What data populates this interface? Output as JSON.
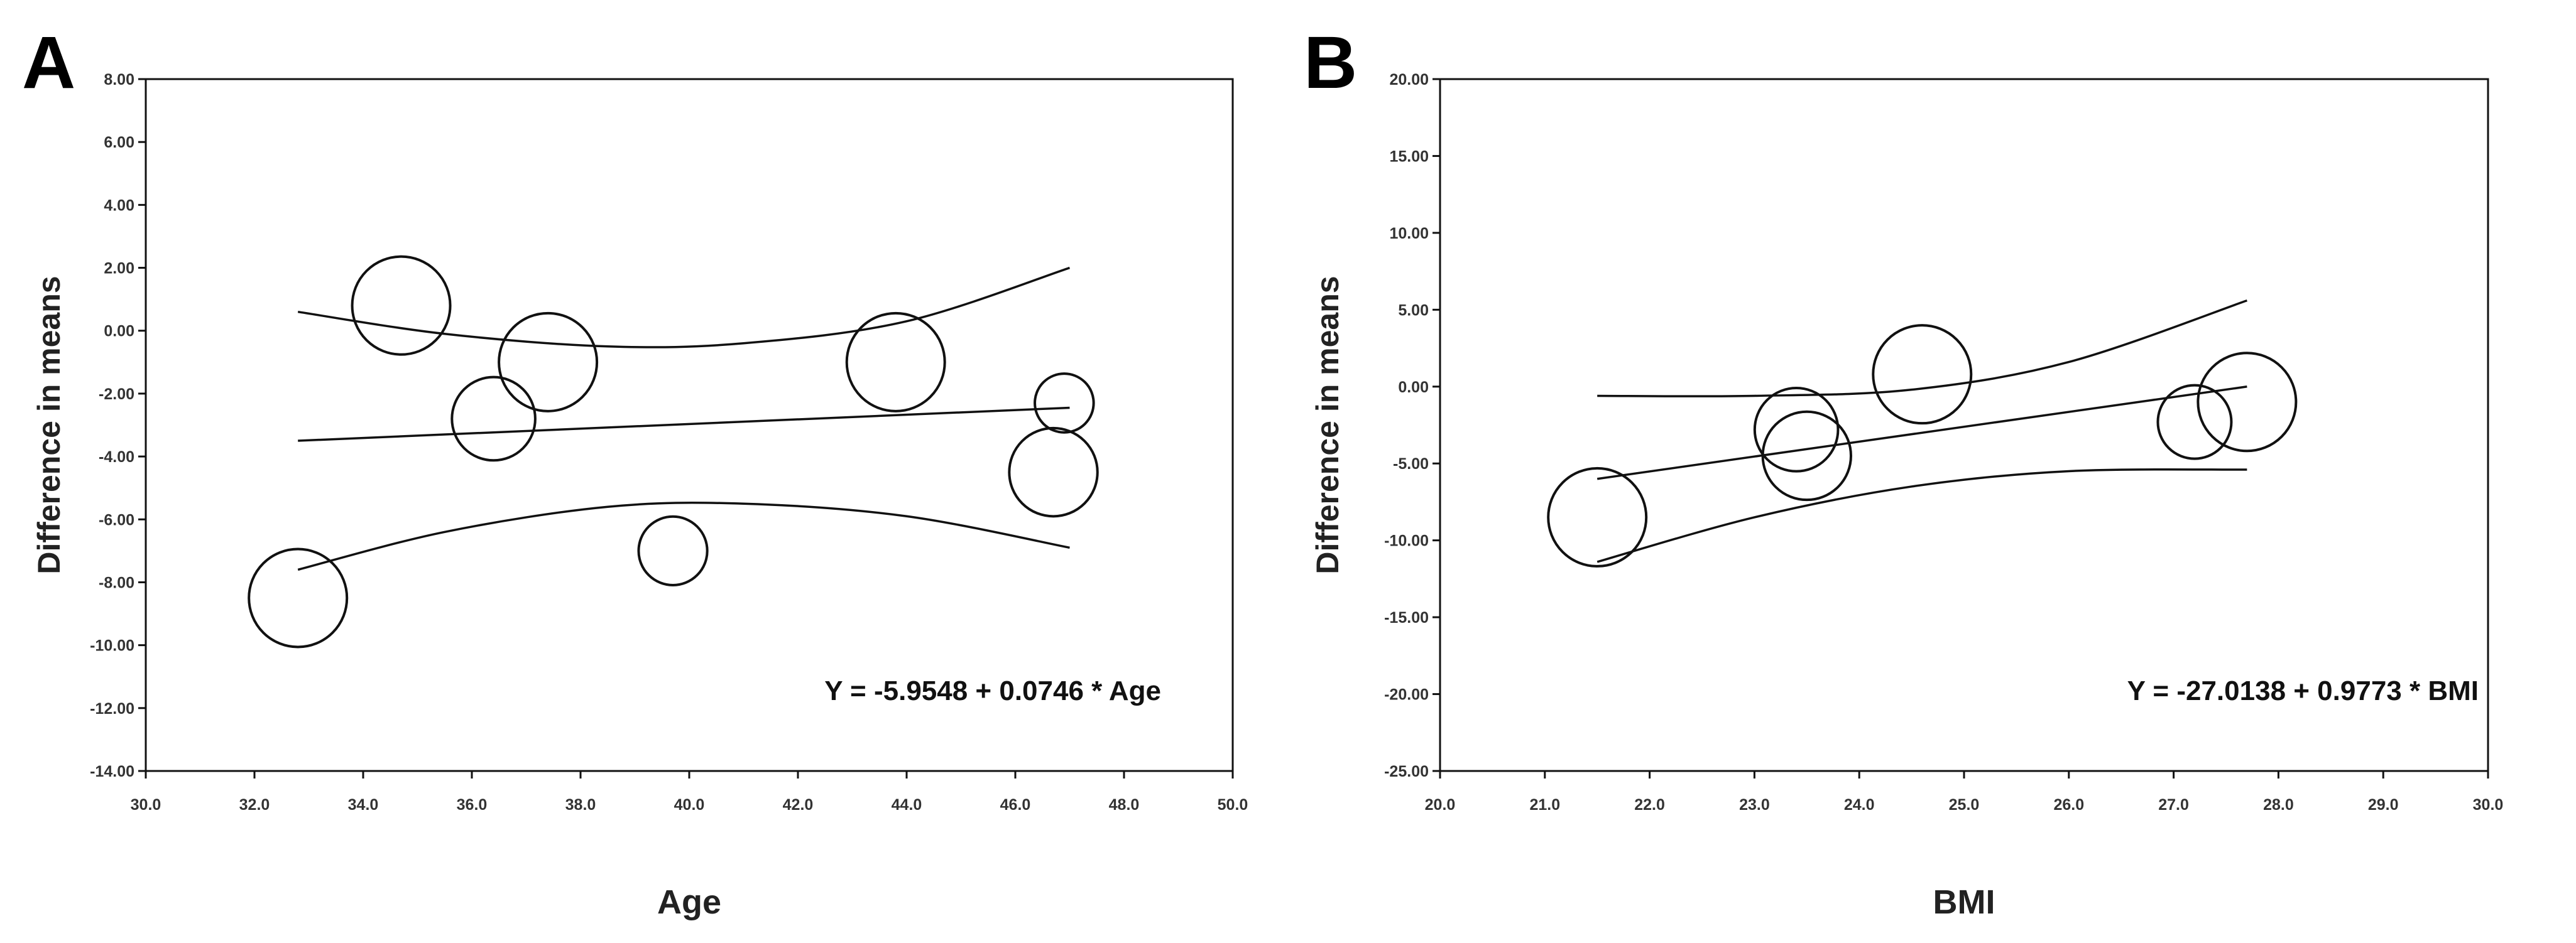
{
  "chart_data": [
    {
      "panel": "A",
      "type": "scatter",
      "xlabel": "Age",
      "ylabel": "Difference in means",
      "xlim": [
        30,
        50
      ],
      "ylim": [
        -14,
        8
      ],
      "xticks": [
        "30.0",
        "32.0",
        "34.0",
        "36.0",
        "38.0",
        "40.0",
        "42.0",
        "44.0",
        "46.0",
        "48.0",
        "50.0"
      ],
      "yticks": [
        "8.00",
        "6.00",
        "4.00",
        "2.00",
        "0.00",
        "-2.00",
        "-4.00",
        "-6.00",
        "-8.00",
        "-10.00",
        "-12.00",
        "-14.00"
      ],
      "equation": "Y = -5.9548 + 0.0746 * Age",
      "points": [
        {
          "x": 32.8,
          "y": -8.5,
          "weight": 1.0
        },
        {
          "x": 34.7,
          "y": 0.8,
          "weight": 1.0
        },
        {
          "x": 36.4,
          "y": -2.8,
          "weight": 0.85
        },
        {
          "x": 37.4,
          "y": -1.0,
          "weight": 1.0
        },
        {
          "x": 39.7,
          "y": -7.0,
          "weight": 0.7
        },
        {
          "x": 43.8,
          "y": -1.0,
          "weight": 1.0
        },
        {
          "x": 46.9,
          "y": -2.3,
          "weight": 0.6
        },
        {
          "x": 46.7,
          "y": -4.5,
          "weight": 0.9
        }
      ],
      "fit_line": [
        {
          "x": 32.8,
          "y": -3.5
        },
        {
          "x": 47.0,
          "y": -2.45
        }
      ],
      "ci_upper": [
        {
          "x": 32.8,
          "y": 0.6
        },
        {
          "x": 35.5,
          "y": -0.1
        },
        {
          "x": 38.5,
          "y": -0.5
        },
        {
          "x": 41.0,
          "y": -0.4
        },
        {
          "x": 44.0,
          "y": 0.3
        },
        {
          "x": 47.0,
          "y": 2.0
        }
      ],
      "ci_lower": [
        {
          "x": 32.8,
          "y": -7.6
        },
        {
          "x": 35.5,
          "y": -6.4
        },
        {
          "x": 38.5,
          "y": -5.6
        },
        {
          "x": 41.0,
          "y": -5.5
        },
        {
          "x": 44.0,
          "y": -5.9
        },
        {
          "x": 47.0,
          "y": -6.9
        }
      ]
    },
    {
      "panel": "B",
      "type": "scatter",
      "xlabel": "BMI",
      "ylabel": "Difference in means",
      "xlim": [
        20,
        30
      ],
      "ylim": [
        -25,
        20
      ],
      "xticks": [
        "20.0",
        "21.0",
        "22.0",
        "23.0",
        "24.0",
        "25.0",
        "26.0",
        "27.0",
        "28.0",
        "29.0",
        "30.0"
      ],
      "yticks": [
        "20.00",
        "15.00",
        "10.00",
        "5.00",
        "0.00",
        "-5.00",
        "-10.00",
        "-15.00",
        "-20.00",
        "-25.00"
      ],
      "equation": "Y = -27.0138 + 0.9773 * BMI",
      "points": [
        {
          "x": 21.5,
          "y": -8.5,
          "weight": 1.0
        },
        {
          "x": 23.4,
          "y": -2.8,
          "weight": 0.85
        },
        {
          "x": 23.5,
          "y": -4.5,
          "weight": 0.9
        },
        {
          "x": 24.6,
          "y": 0.8,
          "weight": 1.0
        },
        {
          "x": 27.2,
          "y": -2.3,
          "weight": 0.75
        },
        {
          "x": 27.7,
          "y": -1.0,
          "weight": 1.0
        }
      ],
      "fit_line": [
        {
          "x": 21.5,
          "y": -6.0
        },
        {
          "x": 27.7,
          "y": 0.0
        }
      ],
      "ci_upper": [
        {
          "x": 21.5,
          "y": -0.6
        },
        {
          "x": 23.0,
          "y": -0.6
        },
        {
          "x": 24.5,
          "y": -0.2
        },
        {
          "x": 26.0,
          "y": 1.6
        },
        {
          "x": 27.7,
          "y": 5.6
        }
      ],
      "ci_lower": [
        {
          "x": 21.5,
          "y": -11.4
        },
        {
          "x": 23.0,
          "y": -8.5
        },
        {
          "x": 24.5,
          "y": -6.5
        },
        {
          "x": 26.0,
          "y": -5.5
        },
        {
          "x": 27.7,
          "y": -5.4
        }
      ]
    }
  ]
}
